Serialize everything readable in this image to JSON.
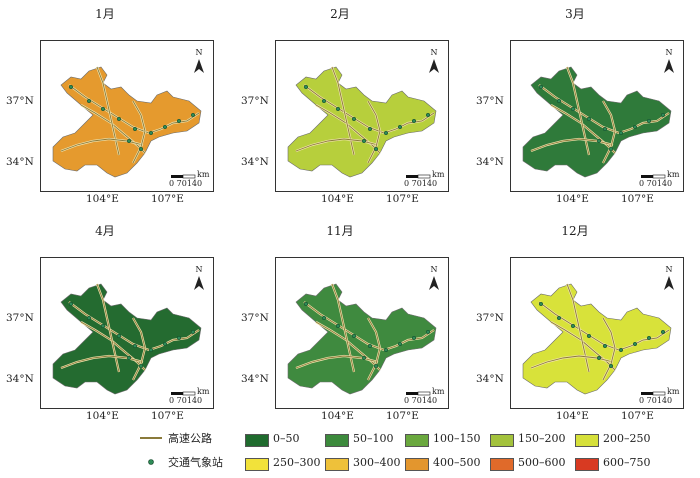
{
  "panels": [
    {
      "title": "1月",
      "fill": "#e59a2e"
    },
    {
      "title": "2月",
      "fill": "#b7cf3c"
    },
    {
      "title": "3月",
      "fill": "#2f7a3a"
    },
    {
      "title": "4月",
      "fill": "#246b30"
    },
    {
      "title": "11月",
      "fill": "#3f8a3f"
    },
    {
      "title": "12月",
      "fill": "#d8e23a"
    }
  ],
  "axes": {
    "lat_ticks": [
      "37°N",
      "34°N"
    ],
    "lon_ticks": [
      "104°E",
      "107°E"
    ]
  },
  "north_label": "N",
  "scale_bar": {
    "labels": "0 70140",
    "unit": "km"
  },
  "legend": {
    "highway_label": "高速公路",
    "station_label": "交通气象站",
    "highway_color": "#8a7a3a",
    "station_color": "#2e8b57",
    "classes": [
      {
        "label": "0–50",
        "color": "#1f6b2e"
      },
      {
        "label": "50–100",
        "color": "#3c8a3c"
      },
      {
        "label": "100–150",
        "color": "#6aa83e"
      },
      {
        "label": "150–200",
        "color": "#a3c23c"
      },
      {
        "label": "200–250",
        "color": "#d6e03a"
      },
      {
        "label": "250–300",
        "color": "#f2e23a"
      },
      {
        "label": "300–400",
        "color": "#eec13a"
      },
      {
        "label": "400–500",
        "color": "#e3962e"
      },
      {
        "label": "500–600",
        "color": "#e06a2a"
      },
      {
        "label": "600–750",
        "color": "#d83a22"
      }
    ]
  }
}
